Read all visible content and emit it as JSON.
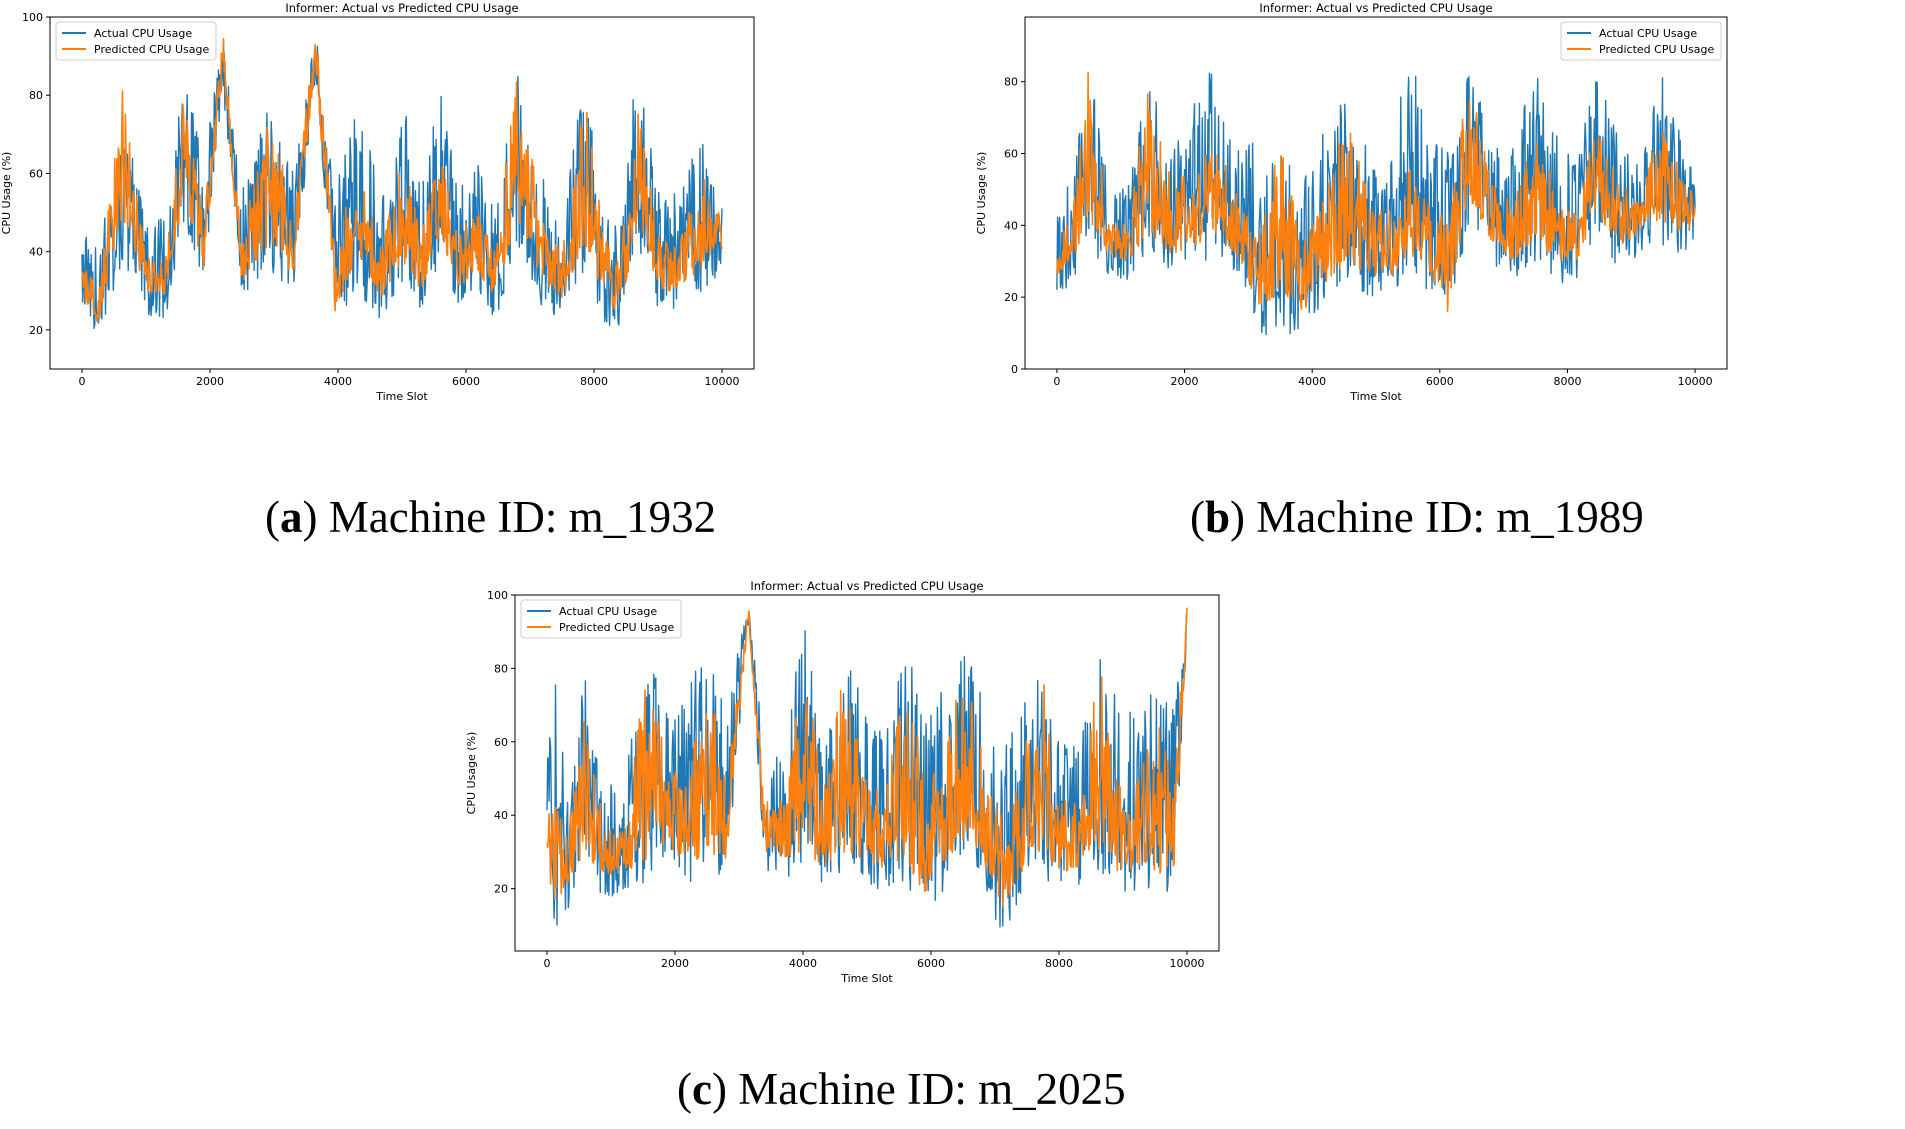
{
  "chart_data": [
    {
      "type": "line",
      "title": "Informer: Actual vs Predicted CPU Usage",
      "xlabel": "Time Slot",
      "ylabel": "CPU Usage (%)",
      "xlim": [
        -500,
        10500
      ],
      "ylim": [
        10,
        100
      ],
      "xticks": [
        0,
        2000,
        4000,
        6000,
        8000,
        10000
      ],
      "yticks": [
        20,
        40,
        60,
        80,
        100
      ],
      "grid": false,
      "legend": "top-left",
      "caption_letter": "a",
      "caption_text": " Machine ID: m_1932",
      "series": [
        {
          "name": "Actual CPU Usage",
          "color": "#1f77b4",
          "x": [
            0,
            250,
            650,
            1000,
            1300,
            1600,
            1900,
            2200,
            2500,
            2950,
            3300,
            3650,
            3950,
            4300,
            4700,
            5000,
            5300,
            5600,
            5900,
            6150,
            6450,
            6800,
            7200,
            7500,
            7850,
            8150,
            8400,
            8700,
            9000,
            9300,
            9700,
            10000
          ],
          "low": [
            25,
            18,
            38,
            24,
            22,
            48,
            32,
            82,
            28,
            35,
            30,
            84,
            18,
            30,
            22,
            32,
            25,
            38,
            24,
            32,
            22,
            40,
            25,
            22,
            35,
            22,
            18,
            40,
            24,
            25,
            30,
            35
          ],
          "high": [
            48,
            40,
            75,
            50,
            48,
            88,
            62,
            97,
            55,
            83,
            60,
            97,
            55,
            80,
            54,
            84,
            55,
            83,
            56,
            64,
            50,
            86,
            60,
            50,
            86,
            58,
            50,
            93,
            56,
            55,
            70,
            52
          ]
        },
        {
          "name": "Predicted CPU Usage",
          "color": "#ff7f0e",
          "x": [
            0,
            250,
            650,
            1000,
            1300,
            1600,
            1900,
            2200,
            2500,
            2950,
            3300,
            3650,
            3950,
            4300,
            4700,
            5000,
            5300,
            5600,
            5900,
            6150,
            6450,
            6800,
            7200,
            7500,
            7850,
            8150,
            8400,
            8700,
            9000,
            9300,
            9700,
            10000
          ],
          "low": [
            28,
            22,
            48,
            30,
            28,
            54,
            36,
            86,
            32,
            42,
            34,
            88,
            24,
            38,
            28,
            38,
            30,
            44,
            30,
            36,
            28,
            48,
            32,
            28,
            42,
            28,
            24,
            48,
            30,
            30,
            36,
            40
          ],
          "high": [
            38,
            30,
            84,
            40,
            38,
            82,
            50,
            97,
            44,
            80,
            48,
            98,
            42,
            62,
            42,
            68,
            44,
            68,
            44,
            52,
            40,
            87,
            48,
            40,
            84,
            44,
            38,
            78,
            44,
            42,
            60,
            48
          ]
        }
      ]
    },
    {
      "type": "line",
      "title": "Informer: Actual vs Predicted CPU Usage",
      "xlabel": "Time Slot",
      "ylabel": "CPU Usage (%)",
      "xlim": [
        -500,
        10500
      ],
      "ylim": [
        0,
        98
      ],
      "xticks": [
        0,
        2000,
        4000,
        6000,
        8000,
        10000
      ],
      "yticks": [
        0,
        20,
        40,
        60,
        80
      ],
      "grid": false,
      "legend": "top-right",
      "caption_letter": "b",
      "caption_text": " Machine ID: m_1989",
      "series": [
        {
          "name": "Actual CPU Usage",
          "color": "#1f77b4",
          "x": [
            0,
            250,
            500,
            800,
            1100,
            1450,
            1800,
            2150,
            2450,
            2800,
            3150,
            3500,
            3850,
            4200,
            4550,
            4900,
            5250,
            5500,
            5800,
            6150,
            6450,
            6800,
            7150,
            7500,
            7850,
            8150,
            8450,
            8800,
            9150,
            9450,
            9750,
            10000
          ],
          "low": [
            20,
            24,
            35,
            26,
            24,
            32,
            25,
            28,
            30,
            26,
            5,
            12,
            6,
            18,
            25,
            20,
            20,
            25,
            22,
            16,
            40,
            30,
            24,
            30,
            24,
            24,
            38,
            28,
            32,
            35,
            32,
            34
          ],
          "high": [
            42,
            55,
            85,
            52,
            50,
            82,
            60,
            78,
            84,
            64,
            64,
            60,
            55,
            68,
            82,
            62,
            60,
            95,
            66,
            60,
            86,
            66,
            62,
            84,
            64,
            60,
            86,
            66,
            60,
            85,
            70,
            56
          ]
        },
        {
          "name": "Predicted CPU Usage",
          "color": "#ff7f0e",
          "x": [
            0,
            250,
            500,
            800,
            1100,
            1450,
            1800,
            2150,
            2450,
            2800,
            3150,
            3500,
            3850,
            4200,
            4550,
            4900,
            5250,
            5500,
            5800,
            6150,
            6450,
            6800,
            7150,
            7500,
            7850,
            8150,
            8450,
            8800,
            9150,
            9450,
            9750,
            10000
          ],
          "low": [
            26,
            30,
            42,
            32,
            30,
            38,
            32,
            34,
            38,
            32,
            18,
            20,
            16,
            24,
            30,
            26,
            26,
            32,
            28,
            15,
            46,
            36,
            30,
            36,
            30,
            30,
            44,
            34,
            38,
            42,
            38,
            40
          ],
          "high": [
            34,
            44,
            87,
            42,
            40,
            81,
            52,
            56,
            66,
            50,
            36,
            64,
            40,
            50,
            78,
            46,
            44,
            58,
            48,
            42,
            84,
            52,
            46,
            68,
            50,
            42,
            70,
            52,
            48,
            70,
            56,
            48
          ]
        }
      ]
    },
    {
      "type": "line",
      "title": "Informer: Actual vs Predicted CPU Usage",
      "xlabel": "Time Slot",
      "ylabel": "CPU Usage (%)",
      "xlim": [
        -500,
        10500
      ],
      "ylim": [
        3,
        100
      ],
      "xticks": [
        0,
        2000,
        4000,
        6000,
        8000,
        10000
      ],
      "yticks": [
        20,
        40,
        60,
        80,
        100
      ],
      "grid": false,
      "legend": "top-left",
      "caption_letter": "c",
      "caption_text": " Machine ID: m_2025",
      "series": [
        {
          "name": "Actual CPU Usage",
          "color": "#1f77b4",
          "x": [
            0,
            150,
            300,
            600,
            900,
            1200,
            1550,
            1900,
            2200,
            2500,
            2800,
            3150,
            3400,
            3700,
            4000,
            4300,
            4650,
            5000,
            5300,
            5600,
            5900,
            6200,
            6550,
            6850,
            7100,
            7400,
            7700,
            8000,
            8300,
            8650,
            8950,
            9250,
            9550,
            9800,
            10000
          ],
          "low": [
            18,
            8,
            12,
            22,
            18,
            18,
            22,
            28,
            20,
            25,
            22,
            92,
            25,
            22,
            25,
            20,
            25,
            22,
            18,
            22,
            12,
            18,
            30,
            20,
            6,
            18,
            25,
            18,
            20,
            25,
            18,
            20,
            18,
            20,
            90
          ],
          "high": [
            55,
            80,
            50,
            78,
            48,
            50,
            82,
            72,
            75,
            86,
            72,
            97,
            58,
            55,
            97,
            62,
            86,
            68,
            62,
            86,
            70,
            75,
            86,
            70,
            60,
            68,
            85,
            62,
            60,
            86,
            70,
            70,
            75,
            70,
            97
          ]
        },
        {
          "name": "Predicted CPU Usage",
          "color": "#ff7f0e",
          "x": [
            0,
            150,
            300,
            600,
            900,
            1200,
            1550,
            1900,
            2200,
            2500,
            2800,
            3150,
            3400,
            3700,
            4000,
            4300,
            4650,
            5000,
            5300,
            5600,
            5900,
            6200,
            6550,
            6850,
            7100,
            7400,
            7700,
            8000,
            8300,
            8650,
            8950,
            9250,
            9550,
            9800,
            10000
          ],
          "low": [
            22,
            16,
            20,
            28,
            24,
            24,
            28,
            32,
            26,
            30,
            28,
            94,
            30,
            28,
            30,
            26,
            30,
            28,
            24,
            28,
            18,
            24,
            34,
            26,
            14,
            24,
            30,
            24,
            26,
            30,
            24,
            26,
            24,
            26,
            92
          ],
          "high": [
            40,
            52,
            36,
            72,
            36,
            36,
            82,
            54,
            50,
            82,
            50,
            97,
            44,
            44,
            94,
            46,
            84,
            48,
            46,
            82,
            50,
            56,
            86,
            52,
            40,
            52,
            85,
            44,
            44,
            86,
            50,
            50,
            70,
            50,
            97
          ]
        }
      ]
    }
  ]
}
